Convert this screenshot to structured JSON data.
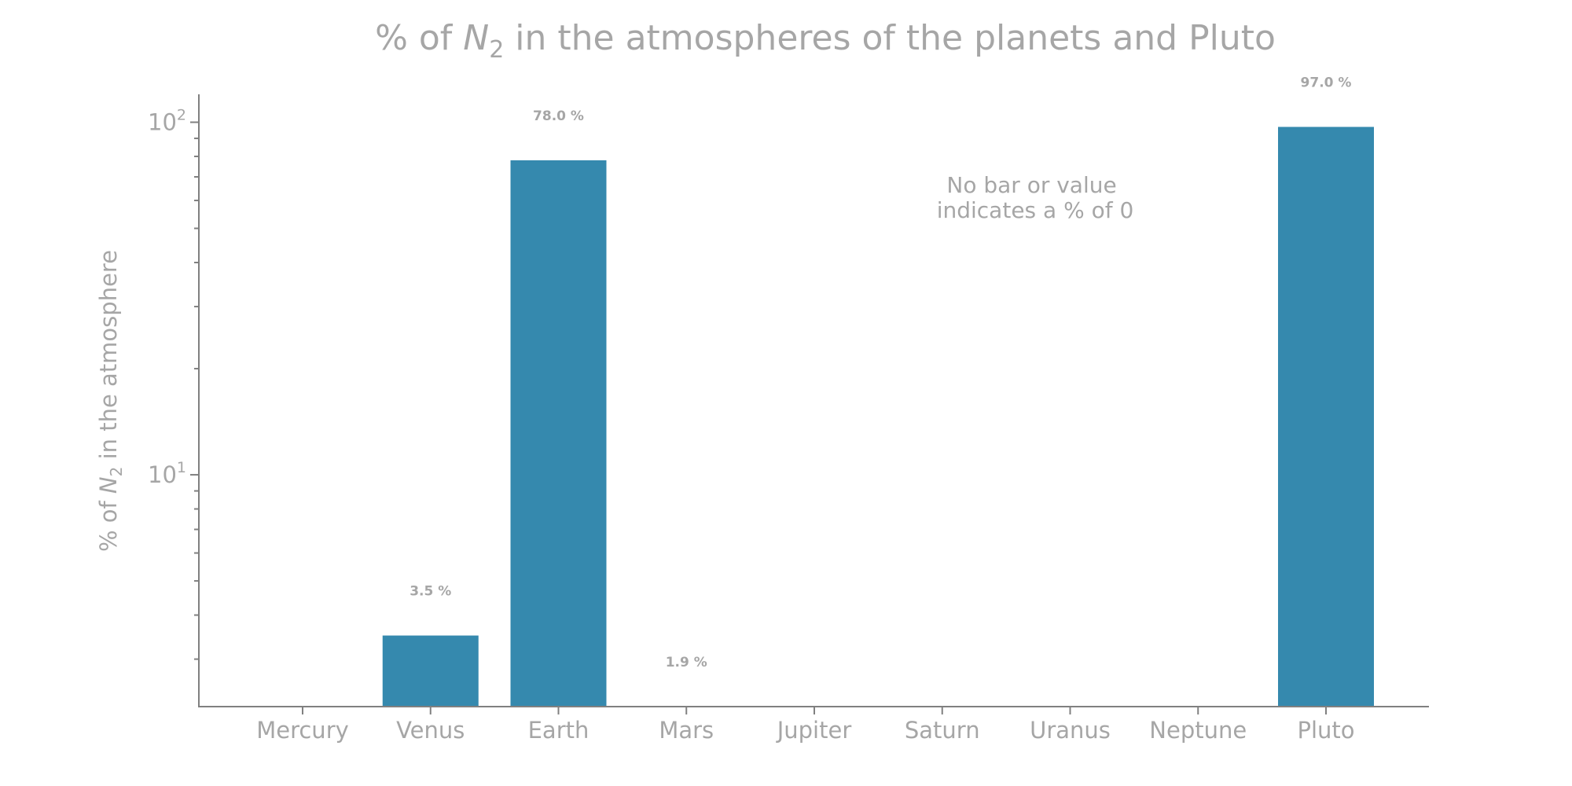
{
  "chart_data": {
    "type": "bar",
    "title_prefix": "% of ",
    "title_var": "N",
    "title_sub": "2",
    "title_suffix": " in the atmospheres of the planets and Pluto",
    "ylabel_prefix": "% of ",
    "ylabel_var": "N",
    "ylabel_sub": "2",
    "ylabel_suffix": " in the atmosphere",
    "yscale": "log",
    "ylim": [
      2.2,
      120
    ],
    "yticks": [
      {
        "value": 10,
        "base": "10",
        "exp": "1"
      },
      {
        "value": 100,
        "base": "10",
        "exp": "2"
      }
    ],
    "categories": [
      "Mercury",
      "Venus",
      "Earth",
      "Mars",
      "Jupiter",
      "Saturn",
      "Uranus",
      "Neptune",
      "Pluto"
    ],
    "values": [
      0,
      3.5,
      78.0,
      1.9,
      0,
      0,
      0,
      0,
      97.0
    ],
    "data_labels": [
      "",
      "3.5 %",
      "78.0 %",
      "1.9 %",
      "",
      "",
      "",
      "",
      "97.0 %"
    ],
    "bar_color": "#3589ae",
    "annotation_lines": [
      "No bar or value",
      "indicates a % of 0"
    ],
    "grid": false,
    "legend": "none"
  }
}
